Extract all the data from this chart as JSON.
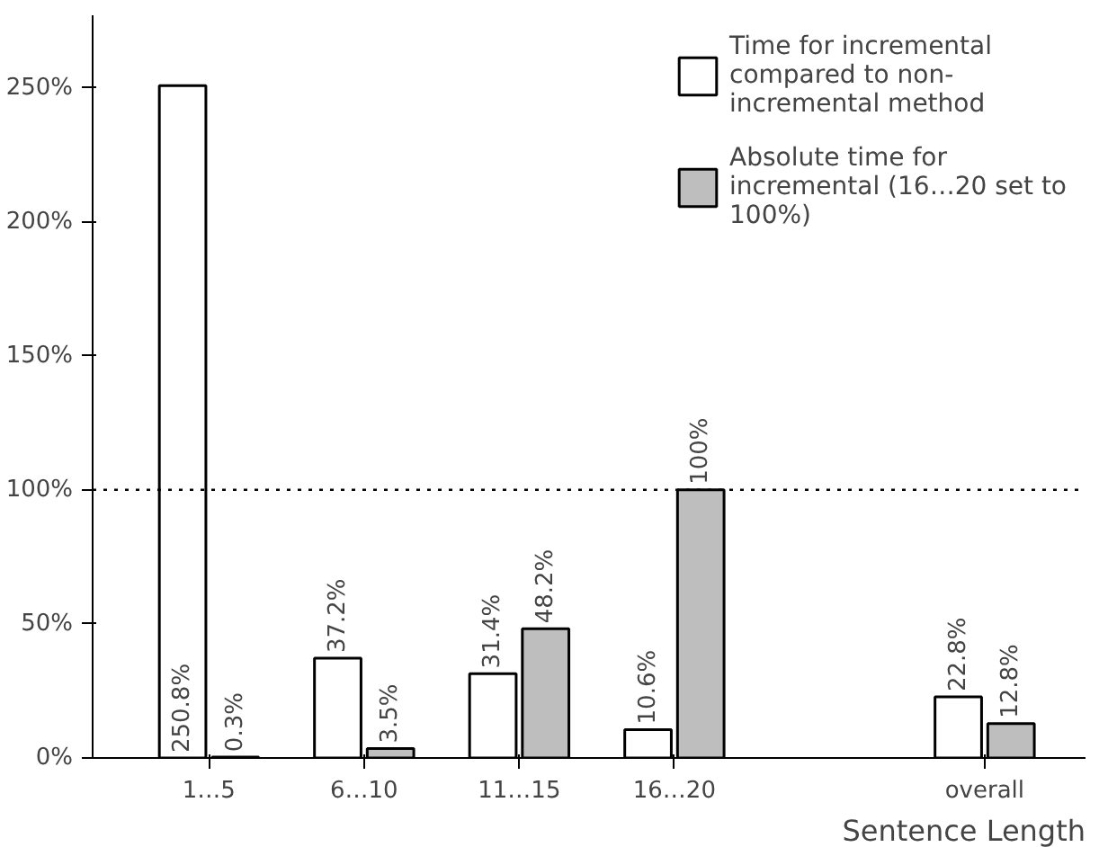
{
  "chart_data": {
    "type": "bar",
    "xlabel": "Sentence Length",
    "categories": [
      "1…5",
      "6…10",
      "11…15",
      "16…20",
      null,
      "overall"
    ],
    "series": [
      {
        "name": "Time for incremental compared to non-incremental method",
        "color": "#ffffff",
        "values": [
          250.8,
          37.2,
          31.4,
          10.6,
          null,
          22.8
        ],
        "value_labels": [
          "250.8%",
          "37.2%",
          "31.4%",
          "10.6%",
          null,
          "22.8%"
        ]
      },
      {
        "name": "Absolute time for incremental (16…20 set to 100%)",
        "color": "#bebebe",
        "values": [
          0.3,
          3.5,
          48.2,
          100,
          null,
          12.8
        ],
        "value_labels": [
          "0.3%",
          "3.5%",
          "48.2%",
          "100%",
          null,
          "12.8%"
        ]
      }
    ],
    "ylim": [
      0,
      277
    ],
    "yticks": [
      {
        "value": 0,
        "label": "0%"
      },
      {
        "value": 50,
        "label": "50%"
      },
      {
        "value": 100,
        "label": "100%"
      },
      {
        "value": 150,
        "label": "150%"
      },
      {
        "value": 200,
        "label": "200%"
      },
      {
        "value": 250,
        "label": "250%"
      }
    ],
    "ref_lines": [
      {
        "axis": "y",
        "value": 100,
        "label": null,
        "line_style": "dotted",
        "color": "#000000"
      }
    ],
    "grid": false,
    "legend": "top right"
  }
}
